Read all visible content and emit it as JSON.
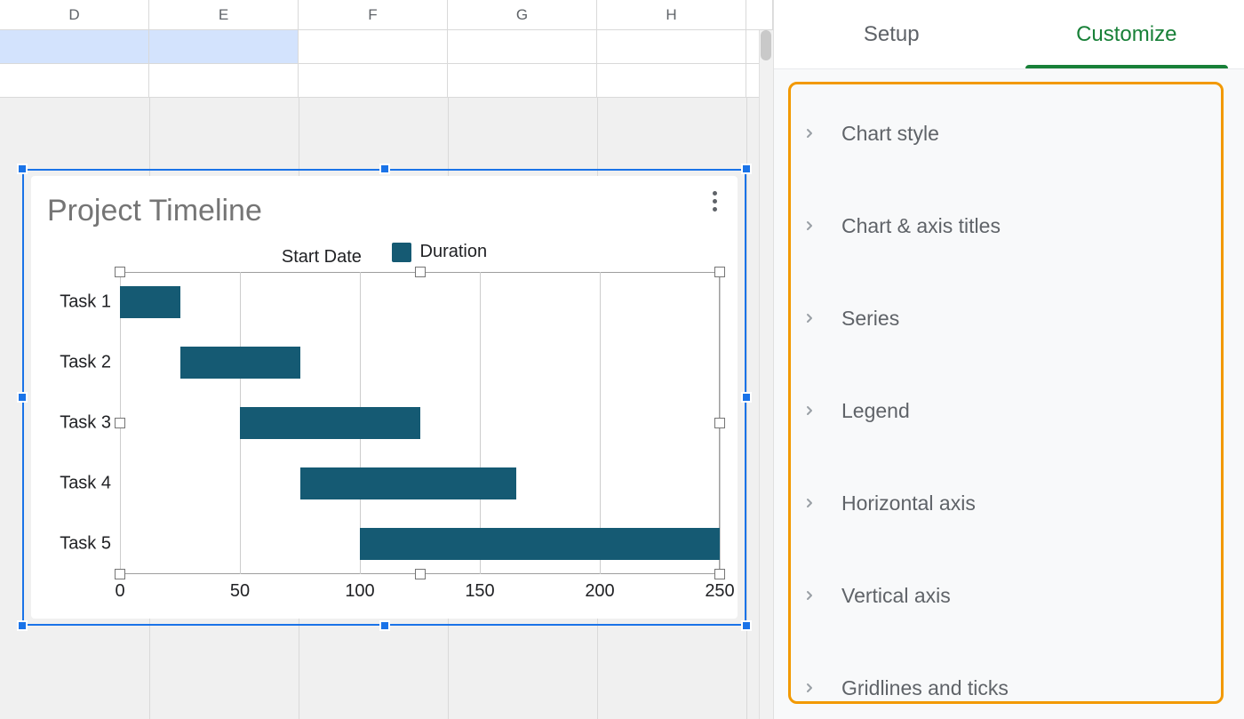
{
  "sheet": {
    "columns": [
      "D",
      "E",
      "F",
      "G",
      "H"
    ],
    "selected_row_index": 0
  },
  "chart": {
    "type": "bar",
    "title": "Project Timeline",
    "title_color": "#757575",
    "title_fontsize": 34,
    "legend": [
      {
        "label": "Start Date",
        "swatch_color": "transparent"
      },
      {
        "label": "Duration",
        "swatch_color": "#155a73"
      }
    ],
    "tasks": [
      "Task 1",
      "Task 2",
      "Task 3",
      "Task 4",
      "Task 5"
    ],
    "start": [
      0,
      25,
      50,
      75,
      100
    ],
    "duration": [
      25,
      50,
      75,
      90,
      150
    ],
    "bar_color": "#155a73",
    "xlim": [
      0,
      250
    ],
    "xtick_step": 50,
    "xticks": [
      0,
      50,
      100,
      150,
      200,
      250
    ],
    "grid_color": "#cccccc",
    "plot_border_color": "#9e9e9e",
    "background_color": "#ffffff",
    "label_fontsize": 20,
    "selection_color": "#1a73e8"
  },
  "sidepanel": {
    "tabs": {
      "setup": "Setup",
      "customize": "Customize",
      "active": "customize"
    },
    "accent_color": "#188038",
    "highlight_box_color": "#f29900",
    "sections": [
      "Chart style",
      "Chart & axis titles",
      "Series",
      "Legend",
      "Horizontal axis",
      "Vertical axis",
      "Gridlines and ticks"
    ]
  }
}
